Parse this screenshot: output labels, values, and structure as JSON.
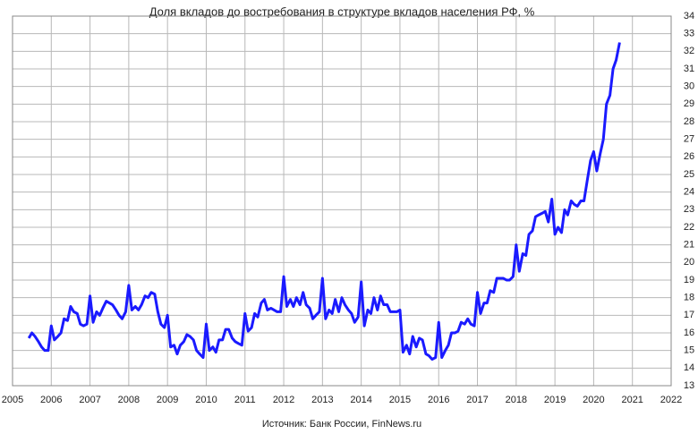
{
  "chart_data": {
    "type": "line",
    "title": "Доля вкладов до востребования в структуре вкладов населения РФ, %",
    "source": "Источник: Банк России, FinNews.ru",
    "x": [
      2005.42,
      2005.5,
      2005.58,
      2005.67,
      2005.75,
      2005.83,
      2005.92,
      2006,
      2006.08,
      2006.17,
      2006.25,
      2006.33,
      2006.42,
      2006.5,
      2006.58,
      2006.67,
      2006.75,
      2006.83,
      2006.92,
      2007,
      2007.08,
      2007.17,
      2007.25,
      2007.33,
      2007.42,
      2007.5,
      2007.58,
      2007.67,
      2007.75,
      2007.83,
      2007.92,
      2008,
      2008.08,
      2008.17,
      2008.25,
      2008.33,
      2008.42,
      2008.5,
      2008.58,
      2008.67,
      2008.75,
      2008.83,
      2008.92,
      2009,
      2009.08,
      2009.17,
      2009.25,
      2009.33,
      2009.42,
      2009.5,
      2009.58,
      2009.67,
      2009.75,
      2009.83,
      2009.92,
      2010,
      2010.08,
      2010.17,
      2010.25,
      2010.33,
      2010.42,
      2010.5,
      2010.58,
      2010.67,
      2010.75,
      2010.83,
      2010.92,
      2011,
      2011.08,
      2011.17,
      2011.25,
      2011.33,
      2011.42,
      2011.5,
      2011.58,
      2011.67,
      2011.75,
      2011.83,
      2011.92,
      2012,
      2012.08,
      2012.17,
      2012.25,
      2012.33,
      2012.42,
      2012.5,
      2012.58,
      2012.67,
      2012.75,
      2012.83,
      2012.92,
      2013,
      2013.08,
      2013.17,
      2013.25,
      2013.33,
      2013.42,
      2013.5,
      2013.58,
      2013.67,
      2013.75,
      2013.83,
      2013.92,
      2014,
      2014.08,
      2014.17,
      2014.25,
      2014.33,
      2014.42,
      2014.5,
      2014.58,
      2014.67,
      2014.75,
      2014.83,
      2014.92,
      2015,
      2015.08,
      2015.17,
      2015.25,
      2015.33,
      2015.42,
      2015.5,
      2015.58,
      2015.67,
      2015.75,
      2015.83,
      2015.92,
      2016,
      2016.08,
      2016.17,
      2016.25,
      2016.33,
      2016.42,
      2016.5,
      2016.58,
      2016.67,
      2016.75,
      2016.83,
      2016.92,
      2017,
      2017.08,
      2017.17,
      2017.25,
      2017.33,
      2017.42,
      2017.5,
      2017.58,
      2017.67,
      2017.75,
      2017.83,
      2017.92,
      2018,
      2018.08,
      2018.17,
      2018.25,
      2018.33,
      2018.42,
      2018.5,
      2018.58,
      2018.67,
      2018.75,
      2018.83,
      2018.92,
      2019,
      2019.08,
      2019.17,
      2019.25,
      2019.33,
      2019.42,
      2019.5,
      2019.58,
      2019.67,
      2019.75,
      2019.83,
      2019.92,
      2020,
      2020.08,
      2020.17,
      2020.25,
      2020.33,
      2020.42,
      2020.5,
      2020.58,
      2020.67
    ],
    "series": [
      {
        "color": "#1a1aff",
        "values": [
          15.7,
          16.0,
          15.8,
          15.5,
          15.2,
          15.0,
          15.0,
          16.4,
          15.6,
          15.8,
          16.0,
          16.8,
          16.7,
          17.5,
          17.2,
          17.1,
          16.5,
          16.4,
          16.5,
          18.1,
          16.6,
          17.2,
          17.0,
          17.4,
          17.8,
          17.7,
          17.6,
          17.3,
          17.0,
          16.8,
          17.2,
          18.7,
          17.3,
          17.5,
          17.3,
          17.6,
          18.1,
          18.0,
          18.3,
          18.2,
          17.2,
          16.5,
          16.3,
          17.0,
          15.2,
          15.3,
          14.8,
          15.3,
          15.5,
          15.9,
          15.8,
          15.6,
          15.0,
          14.8,
          14.6,
          16.5,
          15.0,
          15.2,
          14.9,
          15.6,
          15.6,
          16.2,
          16.2,
          15.7,
          15.5,
          15.4,
          15.3,
          17.1,
          16.1,
          16.3,
          17.1,
          16.9,
          17.7,
          17.9,
          17.3,
          17.4,
          17.3,
          17.2,
          17.2,
          19.2,
          17.5,
          17.9,
          17.5,
          18.0,
          17.6,
          18.3,
          17.6,
          17.4,
          16.8,
          17.0,
          17.2,
          19.1,
          16.8,
          17.3,
          17.1,
          17.9,
          17.2,
          18.0,
          17.6,
          17.3,
          17.1,
          16.6,
          16.9,
          18.9,
          16.4,
          17.3,
          17.1,
          18.0,
          17.3,
          18.1,
          17.6,
          17.6,
          17.2,
          17.2,
          17.2,
          17.3,
          14.9,
          15.3,
          14.8,
          15.8,
          15.2,
          15.7,
          15.6,
          14.8,
          14.7,
          14.5,
          14.6,
          16.6,
          14.6,
          15.0,
          15.3,
          16.0,
          16.0,
          16.1,
          16.6,
          16.5,
          16.8,
          16.5,
          16.4,
          18.3,
          17.1,
          17.7,
          17.7,
          18.4,
          18.3,
          19.1,
          19.1,
          19.1,
          19.0,
          19.0,
          19.2,
          21.0,
          19.5,
          20.5,
          20.4,
          21.6,
          21.8,
          22.6,
          22.7,
          22.8,
          22.9,
          22.3,
          23.6,
          21.6,
          22.0,
          21.7,
          23.0,
          22.7,
          23.5,
          23.3,
          23.2,
          23.5,
          23.5,
          24.6,
          25.8,
          26.3,
          25.2,
          26.2,
          27.0,
          29.0,
          29.5,
          31.0,
          31.5,
          32.5
        ]
      }
    ],
    "xlim": [
      2005,
      2022
    ],
    "xticks": [
      2005,
      2006,
      2007,
      2008,
      2009,
      2010,
      2011,
      2012,
      2013,
      2014,
      2015,
      2016,
      2017,
      2018,
      2019,
      2020,
      2021,
      2022
    ],
    "ylim": [
      13,
      34
    ],
    "yticks": [
      13,
      14,
      15,
      16,
      17,
      18,
      19,
      20,
      21,
      22,
      23,
      24,
      25,
      26,
      27,
      28,
      29,
      30,
      31,
      32,
      33,
      34
    ],
    "grid": true
  }
}
